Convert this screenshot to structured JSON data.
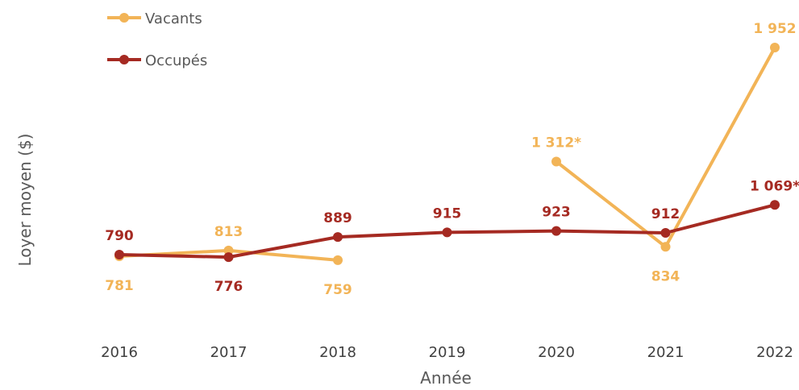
{
  "chart_data": {
    "type": "line",
    "title": "",
    "xlabel": "Année",
    "ylabel": "Loyer moyen ($)",
    "categories": [
      "2016",
      "2017",
      "2018",
      "2019",
      "2020",
      "2021",
      "2022"
    ],
    "ylim": [
      0,
      2100
    ],
    "grid": false,
    "legend_position": "top-left",
    "series": [
      {
        "name": "Vacants",
        "color": "#F2B457",
        "values": [
          781,
          813,
          759,
          null,
          1312,
          834,
          1952
        ],
        "labels": [
          "781",
          "813",
          "759",
          "",
          "1 312*",
          "834",
          "1 952"
        ],
        "label_positions": [
          "below",
          "above",
          "below",
          "",
          "above",
          "below",
          "above"
        ]
      },
      {
        "name": "Occupés",
        "color": "#A52A22",
        "values": [
          790,
          776,
          889,
          915,
          923,
          912,
          1069
        ],
        "labels": [
          "790",
          "776",
          "889",
          "915",
          "923",
          "912",
          "1 069*"
        ],
        "label_positions": [
          "above",
          "below",
          "above",
          "above",
          "above",
          "above",
          "above"
        ]
      }
    ]
  }
}
